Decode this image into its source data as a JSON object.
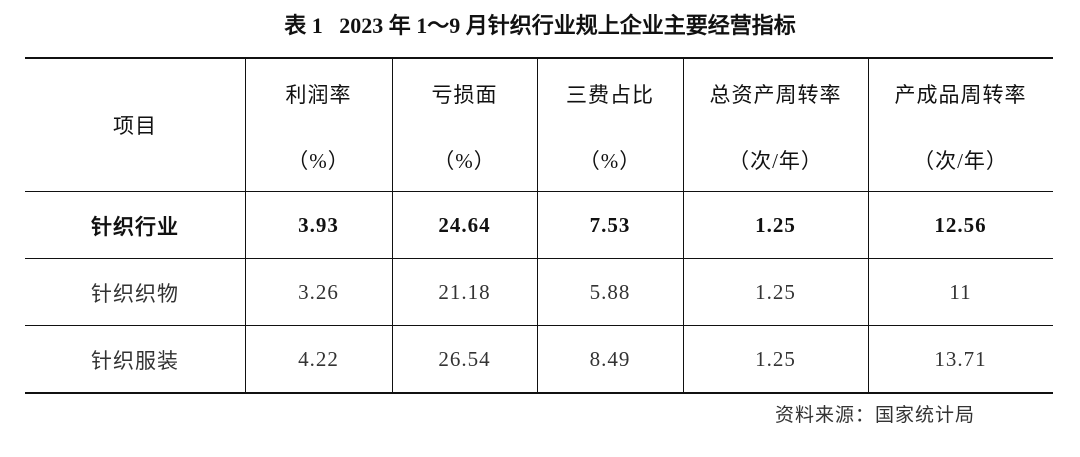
{
  "title": "表 1   2023 年 1～9 月针织行业规上企业主要经营指标",
  "table": {
    "header": [
      {
        "name": "项目"
      },
      {
        "name": "利润率",
        "unit": "（%）"
      },
      {
        "name": "亏损面",
        "unit": "（%）"
      },
      {
        "name": "三费占比",
        "unit": "（%）"
      },
      {
        "name": "总资产周转率",
        "unit": "（次/年）"
      },
      {
        "name": "产成品周转率",
        "unit": "（次/年）"
      }
    ],
    "rows": [
      [
        "针织行业",
        "3.93",
        "24.64",
        "7.53",
        "1.25",
        "12.56"
      ],
      [
        "针织织物",
        "3.26",
        "21.18",
        "5.88",
        "1.25",
        "11"
      ],
      [
        "针织服装",
        "4.22",
        "26.54",
        "8.49",
        "1.25",
        "13.71"
      ]
    ]
  },
  "source": "资料来源：国家统计局"
}
